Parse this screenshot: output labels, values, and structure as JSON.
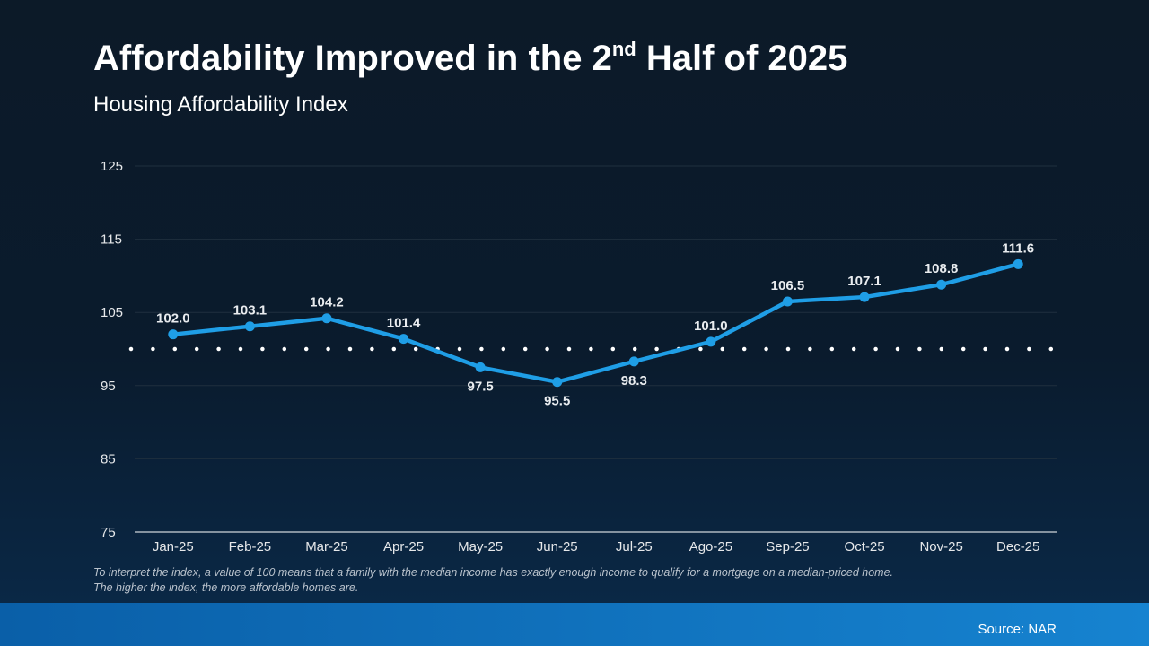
{
  "chart_data": {
    "type": "line",
    "title": {
      "before": "Affordability Improved in the 2",
      "sup": "nd",
      "after": " Half of 2025"
    },
    "subtitle": "Housing Affordability Index",
    "categories": [
      "Jan-25",
      "Feb-25",
      "Mar-25",
      "Apr-25",
      "May-25",
      "Jun-25",
      "Jul-25",
      "Ago-25",
      "Sep-25",
      "Oct-25",
      "Nov-25",
      "Dec-25"
    ],
    "series": [
      {
        "name": "Housing Affordability Index",
        "color": "#1f9ee6",
        "values": [
          102.0,
          103.1,
          104.2,
          101.4,
          97.5,
          95.5,
          98.3,
          101.0,
          106.5,
          107.1,
          108.8,
          111.6
        ],
        "value_labels": [
          "102.0",
          "103.1",
          "104.2",
          "101.4",
          "97.5",
          "95.5",
          "98.3",
          "101.0",
          "106.5",
          "107.1",
          "108.8",
          "111.6"
        ]
      }
    ],
    "reference_line": 100,
    "ylim": [
      75,
      125
    ],
    "yticks": [
      75,
      85,
      95,
      105,
      115,
      125
    ],
    "grid": true,
    "footnote": [
      "To interpret the index, a value of 100 means that a family with the median income has exactly enough income to qualify for a mortgage on a median-priced home.",
      "The higher the index, the more affordable homes are."
    ],
    "source": "Source: NAR"
  }
}
